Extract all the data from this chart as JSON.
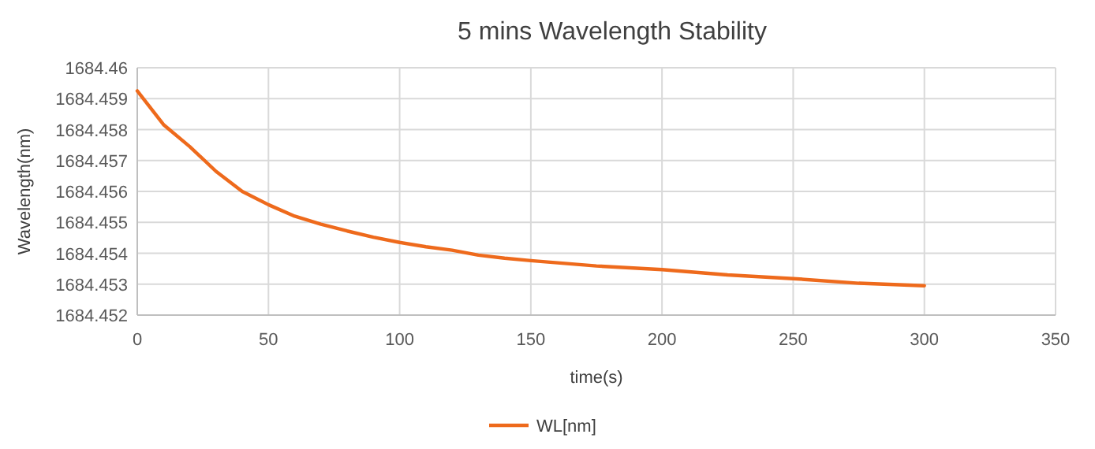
{
  "chart_data": {
    "type": "line",
    "title": "5 mins Wavelength Stability",
    "xlabel": "time(s)",
    "ylabel": "Wavelength(nm)",
    "x": [
      0,
      10,
      20,
      30,
      40,
      50,
      60,
      70,
      80,
      90,
      100,
      110,
      120,
      130,
      140,
      150,
      175,
      200,
      225,
      250,
      275,
      300
    ],
    "series": [
      {
        "name": "WL[nm]",
        "color": "#ee6a1c",
        "values": [
          1684.45925,
          1684.45816,
          1684.45745,
          1684.45665,
          1684.456,
          1684.45557,
          1684.4552,
          1684.45494,
          1684.45472,
          1684.45452,
          1684.45435,
          1684.45421,
          1684.4541,
          1684.45394,
          1684.45384,
          1684.45376,
          1684.45359,
          1684.45347,
          1684.4533,
          1684.45318,
          1684.45303,
          1684.45295
        ]
      }
    ],
    "xlim": [
      0,
      350
    ],
    "xticks": [
      0,
      50,
      100,
      150,
      200,
      250,
      300,
      350
    ],
    "ylim": [
      1684.452,
      1684.46
    ],
    "yticks": [
      1684.452,
      1684.453,
      1684.454,
      1684.455,
      1684.456,
      1684.457,
      1684.458,
      1684.459,
      1684.46
    ],
    "grid": true,
    "legend": "bottom",
    "marker": "none",
    "line_style": "solid"
  }
}
